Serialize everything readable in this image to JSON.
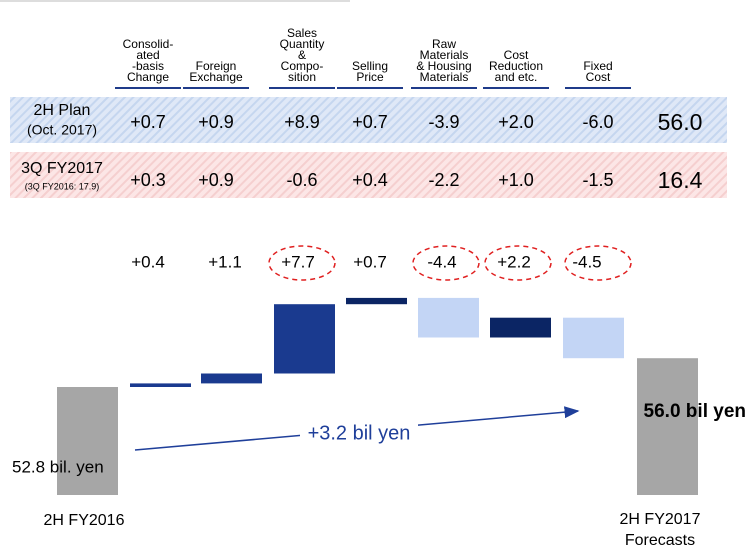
{
  "table": {
    "columns": [
      [
        "Consolid-",
        "ated",
        "-basis",
        "Change"
      ],
      [
        "Foreign",
        "Exchange"
      ],
      [
        "Sales",
        "Quantity",
        "&",
        "Compo-",
        "sition"
      ],
      [
        "Selling",
        "Price"
      ],
      [
        "Raw",
        "Materials",
        "& Housing",
        "Materials"
      ],
      [
        "Cost",
        "Reduction",
        "and etc."
      ],
      [
        "Fixed",
        "Cost"
      ]
    ],
    "rows": [
      {
        "label": "2H Plan",
        "sublabel": "(Oct. 2017)",
        "values": [
          "+0.7",
          "+0.9",
          "+8.9",
          "+0.7",
          "-3.9",
          "+2.0",
          "-6.0"
        ],
        "total": "56.0"
      },
      {
        "label": "3Q FY2017",
        "sublabel": "(3Q FY2016: 17.9)",
        "values": [
          "+0.3",
          "+0.9",
          "-0.6",
          "+0.4",
          "-2.2",
          "+1.0",
          "-1.5"
        ],
        "total": "16.4"
      }
    ]
  },
  "chart_data": {
    "type": "waterfall",
    "categories": [
      "2H FY2016",
      null,
      null,
      null,
      null,
      null,
      null,
      null,
      "2H FY2017 Forecasts"
    ],
    "measures": [
      "absolute",
      "relative",
      "relative",
      "relative",
      "relative",
      "relative",
      "relative",
      "relative",
      "total"
    ],
    "values": [
      52.8,
      0.4,
      1.1,
      7.7,
      0.7,
      -4.4,
      2.2,
      -4.5,
      56.0
    ],
    "value_labels": [
      "52.8 bil. yen",
      "+0.4",
      "+1.1",
      "+7.7",
      "+0.7",
      "-4.4",
      "+2.2",
      "-4.5",
      "56.0 bil yen"
    ],
    "colors": [
      "#a6a6a6",
      "#1a3a8f",
      "#1a3a8f",
      "#1a3a8f",
      "#0b2564",
      "#c3d5f5",
      "#0b2564",
      "#c3d5f5",
      "#a6a6a6"
    ],
    "annotation": "+3.2 bil yen"
  }
}
